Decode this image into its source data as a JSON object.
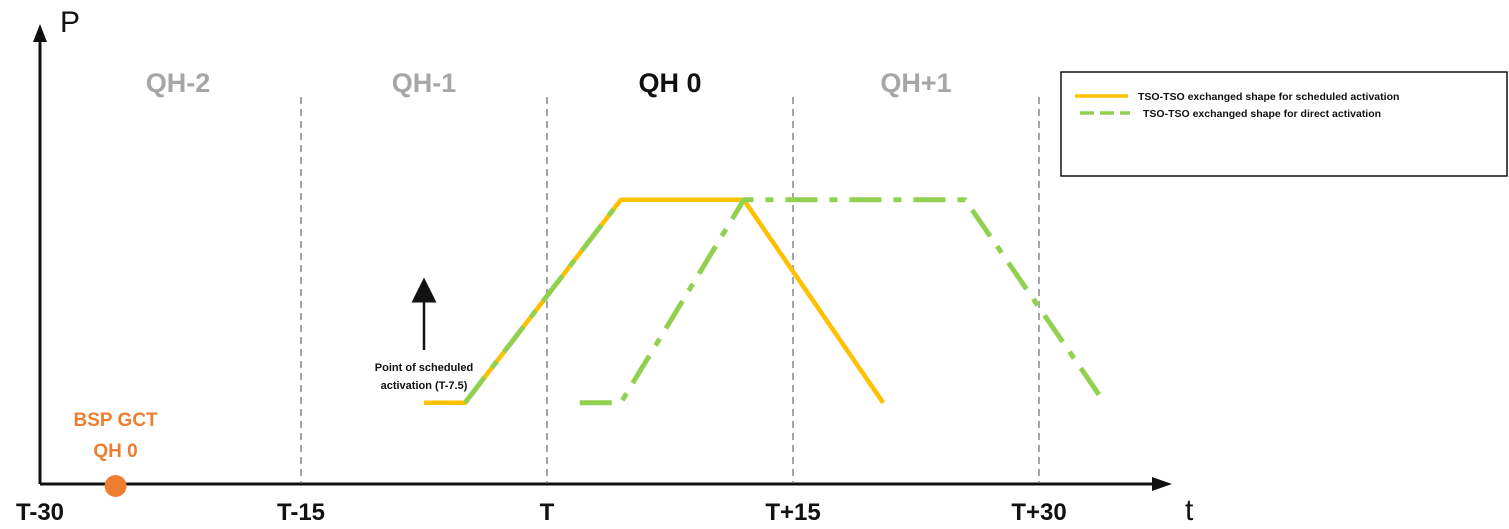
{
  "colors": {
    "scheduled": "#FFC000",
    "direct": "#92D050",
    "marker": "#ED7D31",
    "qh_inactive": "#A6A6A6",
    "qh_active": "#111111",
    "divider": "#A6A6A6"
  },
  "axes": {
    "y_label": "P",
    "x_label": "t",
    "ticks": [
      {
        "value": -30,
        "label": "T-30"
      },
      {
        "value": -15,
        "label": "T-15"
      },
      {
        "value": 0,
        "label": "T"
      },
      {
        "value": 15,
        "label": "T+15"
      },
      {
        "value": 30,
        "label": "T+30"
      }
    ]
  },
  "quarter_hours": [
    {
      "label": "QH-2",
      "center": -22.5,
      "active": false
    },
    {
      "label": "QH-1",
      "center": -7.5,
      "active": false
    },
    {
      "label": "QH 0",
      "center": 7.5,
      "active": true
    },
    {
      "label": "QH+1",
      "center": 22.5,
      "active": false
    }
  ],
  "dividers": [
    -15,
    0,
    15,
    30
  ],
  "legend": {
    "scheduled": "TSO-TSO exchanged shape for scheduled activation",
    "direct": "TSO-TSO exchanged shape for direct activation"
  },
  "annotation": {
    "line1": "Point of scheduled",
    "line2": "activation (T-7.5)",
    "at": -7.5
  },
  "bsp_gct": {
    "line1": "BSP GCT",
    "line2": "QH 0",
    "at": -26
  },
  "chart_data": {
    "type": "line",
    "x_unit": "minutes relative to T",
    "series": [
      {
        "name": "TSO-TSO exchanged shape for scheduled activation",
        "style": "solid",
        "points": [
          [
            -7.5,
            0.2
          ],
          [
            -5,
            0.2
          ],
          [
            4.5,
            0.7
          ],
          [
            12,
            0.7
          ],
          [
            20.5,
            0.2
          ]
        ]
      },
      {
        "name": "TSO-TSO exchanged shape for direct activation",
        "style": "dash-dot",
        "points": [
          [
            -5,
            0.2
          ],
          [
            4.5,
            0.7
          ]
        ]
      },
      {
        "name": "TSO-TSO exchanged shape for direct activation",
        "style": "dash-dot",
        "points": [
          [
            2,
            0.2
          ],
          [
            4.5,
            0.2
          ],
          [
            12,
            0.7
          ],
          [
            25.5,
            0.7
          ],
          [
            34,
            0.2
          ]
        ]
      }
    ]
  }
}
